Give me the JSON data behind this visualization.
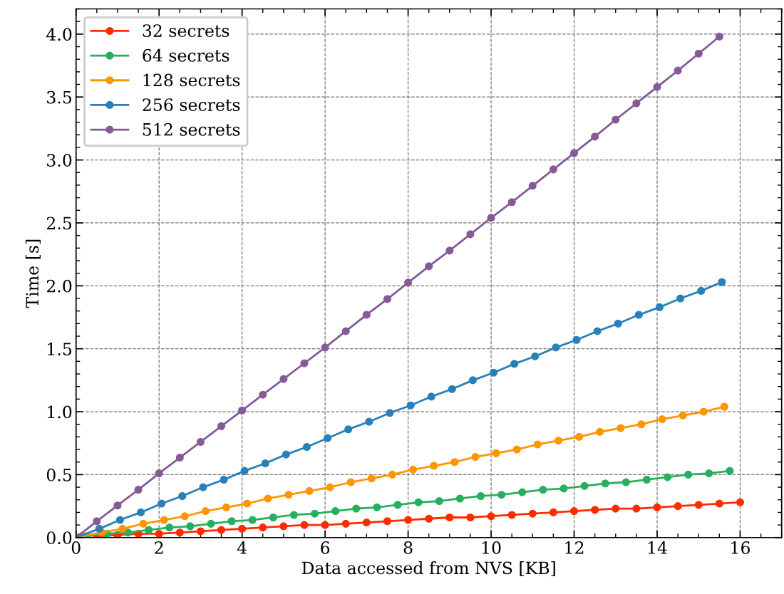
{
  "chart_data": {
    "type": "line",
    "xlabel": "Data accessed from NVS [KB]",
    "ylabel": "Time [s]",
    "xlim": [
      0,
      17
    ],
    "xticks": [
      0,
      2,
      4,
      6,
      8,
      10,
      12,
      14,
      16
    ],
    "ylim": [
      0,
      4.2
    ],
    "yticks": [
      {
        "value": 0,
        "label": "0.0"
      },
      0.5,
      {
        "value": 1,
        "label": "1.0"
      },
      1.5,
      {
        "value": 2,
        "label": "2.0"
      },
      2.5,
      {
        "value": 3,
        "label": "3.0"
      },
      3.5,
      {
        "value": 4,
        "label": "4.0"
      }
    ],
    "grid": true,
    "legend": "top left",
    "marker": "circle",
    "line_style": "solid",
    "series": [
      {
        "name": "32 secrets",
        "color": "#ff2c00",
        "x": [
          0.5,
          1,
          1.5,
          2,
          2.5,
          3,
          3.5,
          4,
          4.5,
          5,
          5.5,
          6,
          6.5,
          7,
          7.5,
          8,
          8.5,
          9,
          9.5,
          10,
          10.5,
          11,
          11.5,
          12,
          12.5,
          13,
          13.5,
          14,
          14.5,
          15,
          15.5,
          16
        ],
        "values": [
          0.01,
          0.02,
          0.03,
          0.03,
          0.04,
          0.05,
          0.06,
          0.07,
          0.08,
          0.09,
          0.1,
          0.1,
          0.11,
          0.12,
          0.13,
          0.14,
          0.15,
          0.16,
          0.16,
          0.17,
          0.18,
          0.19,
          0.2,
          0.21,
          0.22,
          0.23,
          0.23,
          0.24,
          0.25,
          0.26,
          0.27,
          0.28
        ]
      },
      {
        "name": "64 secrets",
        "color": "#27ae60",
        "x": [
          0.25,
          0.75,
          1.25,
          1.75,
          2.25,
          2.75,
          3.25,
          3.75,
          4.25,
          4.75,
          5.25,
          5.75,
          6.25,
          6.75,
          7.25,
          7.75,
          8.25,
          8.75,
          9.25,
          9.75,
          10.25,
          10.75,
          11.25,
          11.75,
          12.25,
          12.75,
          13.25,
          13.75,
          14.25,
          14.75,
          15.25,
          15.75
        ],
        "values": [
          0.01,
          0.03,
          0.04,
          0.06,
          0.08,
          0.09,
          0.11,
          0.13,
          0.14,
          0.16,
          0.18,
          0.19,
          0.21,
          0.23,
          0.24,
          0.26,
          0.28,
          0.29,
          0.31,
          0.33,
          0.34,
          0.36,
          0.38,
          0.39,
          0.41,
          0.43,
          0.44,
          0.46,
          0.48,
          0.5,
          0.51,
          0.53
        ]
      },
      {
        "name": "128 secrets",
        "color": "#ff9500",
        "x": [
          0.12,
          0.62,
          1.12,
          1.62,
          2.12,
          2.62,
          3.12,
          3.62,
          4.12,
          4.62,
          5.12,
          5.62,
          6.12,
          6.62,
          7.12,
          7.62,
          8.12,
          8.62,
          9.12,
          9.62,
          10.12,
          10.62,
          11.12,
          11.62,
          12.12,
          12.62,
          13.12,
          13.62,
          14.12,
          14.62,
          15.12,
          15.62
        ],
        "values": [
          0.01,
          0.04,
          0.07,
          0.11,
          0.14,
          0.17,
          0.21,
          0.24,
          0.27,
          0.31,
          0.34,
          0.37,
          0.4,
          0.44,
          0.47,
          0.5,
          0.54,
          0.57,
          0.6,
          0.64,
          0.67,
          0.7,
          0.74,
          0.77,
          0.8,
          0.84,
          0.87,
          0.9,
          0.94,
          0.97,
          1.0,
          1.04
        ]
      },
      {
        "name": "256 secrets",
        "color": "#2980b9",
        "x": [
          0,
          0.56,
          1.06,
          1.56,
          2.06,
          2.56,
          3.06,
          3.56,
          4.06,
          4.56,
          5.06,
          5.56,
          6.06,
          6.56,
          7.06,
          7.56,
          8.06,
          8.56,
          9.06,
          9.56,
          10.06,
          10.56,
          11.06,
          11.56,
          12.06,
          12.56,
          13.06,
          13.56,
          14.06,
          14.56,
          15.06,
          15.56
        ],
        "values": [
          0,
          0.07,
          0.14,
          0.2,
          0.27,
          0.33,
          0.4,
          0.46,
          0.53,
          0.59,
          0.66,
          0.72,
          0.79,
          0.86,
          0.92,
          0.99,
          1.05,
          1.12,
          1.18,
          1.25,
          1.31,
          1.38,
          1.44,
          1.51,
          1.57,
          1.64,
          1.7,
          1.77,
          1.83,
          1.9,
          1.96,
          2.03
        ]
      },
      {
        "name": "512 secrets",
        "color": "#845b97",
        "x": [
          0,
          0.5,
          1,
          1.5,
          2,
          2.5,
          3,
          3.5,
          4,
          4.5,
          5,
          5.5,
          6,
          6.5,
          7,
          7.5,
          8,
          8.5,
          9,
          9.5,
          10,
          10.5,
          11,
          11.5,
          12,
          12.5,
          13,
          13.5,
          14,
          14.5,
          15,
          15.5
        ],
        "values": [
          0,
          0.13,
          0.255,
          0.38,
          0.51,
          0.635,
          0.76,
          0.885,
          1.01,
          1.135,
          1.26,
          1.385,
          1.51,
          1.64,
          1.77,
          1.895,
          2.025,
          2.155,
          2.28,
          2.41,
          2.54,
          2.665,
          2.795,
          2.925,
          3.055,
          3.185,
          3.32,
          3.45,
          3.58,
          3.71,
          3.845,
          3.98
        ]
      }
    ]
  }
}
